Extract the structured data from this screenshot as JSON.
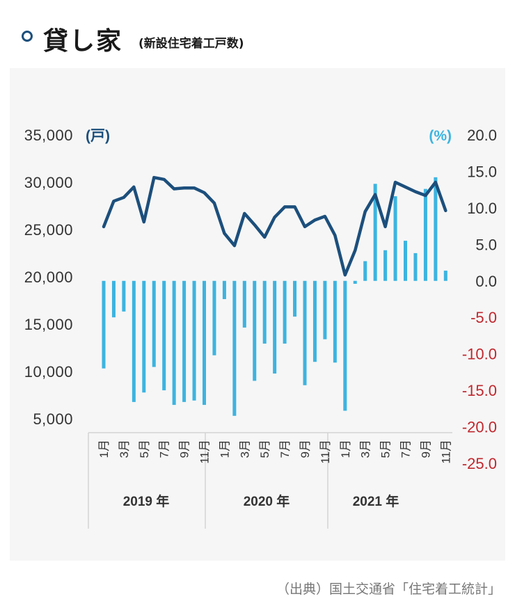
{
  "header": {
    "title": "貸し家",
    "subtitle": "(新設住宅着工戸数)"
  },
  "source": "（出典）国土交通省「住宅着工統計」",
  "colors": {
    "line": "#1c4f7c",
    "bar": "#3cb4e0",
    "negative_tick": "#c0272d",
    "right_unit": "#3cb4e0",
    "left_unit": "#1c4f7c"
  },
  "chart_data": {
    "type": "bar+line",
    "left_axis": {
      "unit": "(戸)",
      "ticks": [
        "35,000",
        "30,000",
        "25,000",
        "20,000",
        "15,000",
        "10,000",
        "5,000"
      ],
      "ylim": [
        5000,
        35000
      ]
    },
    "right_axis": {
      "unit": "(%)",
      "ticks": [
        "20.0",
        "15.0",
        "10.0",
        "5.0",
        "0.0",
        "-5.0",
        "-10.0",
        "-15.0",
        "-20.0",
        "-25.0"
      ],
      "ylim": [
        -25,
        20
      ]
    },
    "month_labels": [
      "1月",
      "",
      "3月",
      "",
      "5月",
      "",
      "7月",
      "",
      "9月",
      "",
      "11月",
      "",
      "1月",
      "",
      "3月",
      "",
      "5月",
      "",
      "7月",
      "",
      "9月",
      "",
      "11月",
      "",
      "1月",
      "",
      "3月",
      "",
      "5月",
      "",
      "7月",
      "",
      "9月",
      "",
      "11月",
      ""
    ],
    "years": [
      "2019 年",
      "2020 年",
      "2021 年"
    ],
    "series": [
      {
        "type": "line",
        "axis": "left",
        "values": [
          25300,
          28000,
          28400,
          29500,
          25800,
          30500,
          30300,
          29300,
          29400,
          29400,
          28900,
          27800,
          24600,
          23300,
          26700,
          25500,
          24200,
          26300,
          27400,
          27400,
          25300,
          26000,
          26400,
          24400,
          20200,
          22800,
          26900,
          28700,
          25300,
          30000,
          29500,
          29000,
          28600,
          30000,
          27000,
          null
        ]
      },
      {
        "type": "bar",
        "axis": "right",
        "values": [
          -12.0,
          -5.0,
          -4.2,
          -16.6,
          -15.3,
          -11.8,
          -15.0,
          -17.0,
          -16.6,
          -16.4,
          -17.0,
          -10.2,
          -2.5,
          -18.5,
          -6.4,
          -13.7,
          -8.6,
          -12.7,
          -8.6,
          -4.9,
          -14.3,
          -11.1,
          -8.0,
          -11.2,
          -17.8,
          -0.4,
          2.7,
          13.3,
          4.2,
          11.6,
          5.5,
          3.8,
          12.6,
          14.2,
          1.4,
          null
        ]
      }
    ]
  }
}
